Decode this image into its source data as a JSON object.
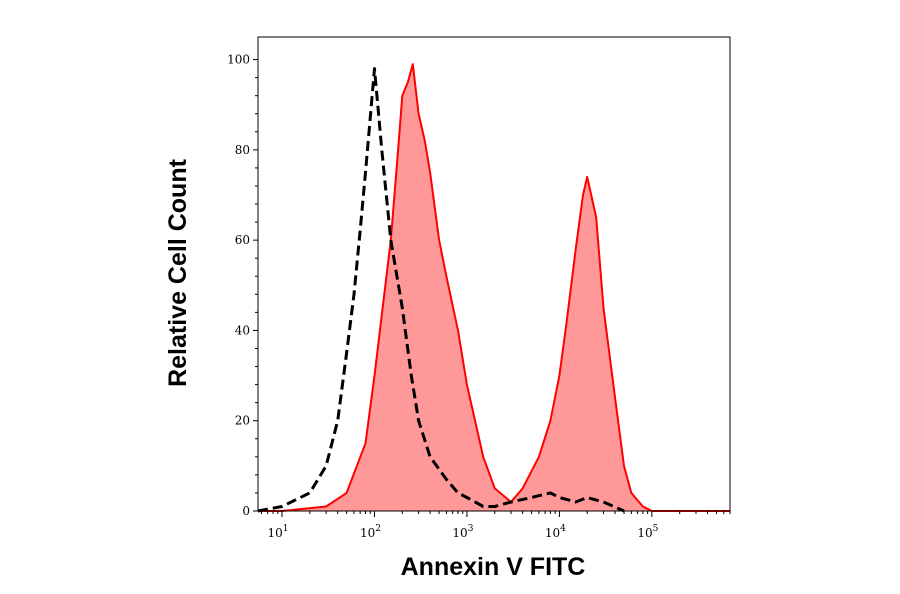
{
  "chart_data": {
    "type": "area",
    "title": "",
    "xlabel": "Annexin V FITC",
    "ylabel": "Relative Cell Count",
    "x_scale": "log",
    "xlim": [
      5.5,
      700000
    ],
    "ylim": [
      0,
      105
    ],
    "y_ticks": [
      "0",
      "20",
      "40",
      "60",
      "80",
      "100"
    ],
    "x_ticks": [
      {
        "base": "10",
        "exp": "1"
      },
      {
        "base": "10",
        "exp": "2"
      },
      {
        "base": "10",
        "exp": "3"
      },
      {
        "base": "10",
        "exp": "4"
      },
      {
        "base": "10",
        "exp": "5"
      }
    ],
    "grid": false,
    "legend": "none",
    "colors": {
      "treated_line": "#ff0000",
      "treated_fill": "#ff9999",
      "control_line": "#000000"
    },
    "series": [
      {
        "style": "filled-red",
        "x": [
          5.5,
          10,
          30,
          50,
          80,
          100,
          150,
          180,
          200,
          230,
          260,
          300,
          350,
          400,
          500,
          600,
          800,
          1000,
          1500,
          2000,
          3000,
          4000,
          6000,
          8000,
          10000,
          12000,
          15000,
          18000,
          20000,
          25000,
          30000,
          40000,
          50000,
          60000,
          80000,
          100000,
          700000
        ],
        "y": [
          0,
          0,
          1,
          4,
          15,
          30,
          60,
          80,
          92,
          95,
          99,
          88,
          82,
          75,
          60,
          52,
          40,
          28,
          12,
          5,
          2,
          5,
          12,
          20,
          30,
          42,
          58,
          70,
          74,
          65,
          45,
          25,
          10,
          4,
          1,
          0,
          0
        ]
      },
      {
        "style": "dashed-black",
        "x": [
          5.5,
          10,
          20,
          30,
          40,
          50,
          60,
          70,
          80,
          90,
          100,
          120,
          150,
          200,
          250,
          300,
          400,
          600,
          800,
          1000,
          1500,
          2000,
          3000,
          5000,
          8000,
          10000,
          15000,
          20000,
          30000,
          50000
        ],
        "y": [
          0,
          1,
          4,
          10,
          20,
          35,
          48,
          62,
          75,
          87,
          98,
          80,
          60,
          45,
          30,
          20,
          12,
          7,
          4,
          3,
          1,
          1,
          2,
          3,
          4,
          3,
          2,
          3,
          2,
          0
        ]
      }
    ]
  }
}
